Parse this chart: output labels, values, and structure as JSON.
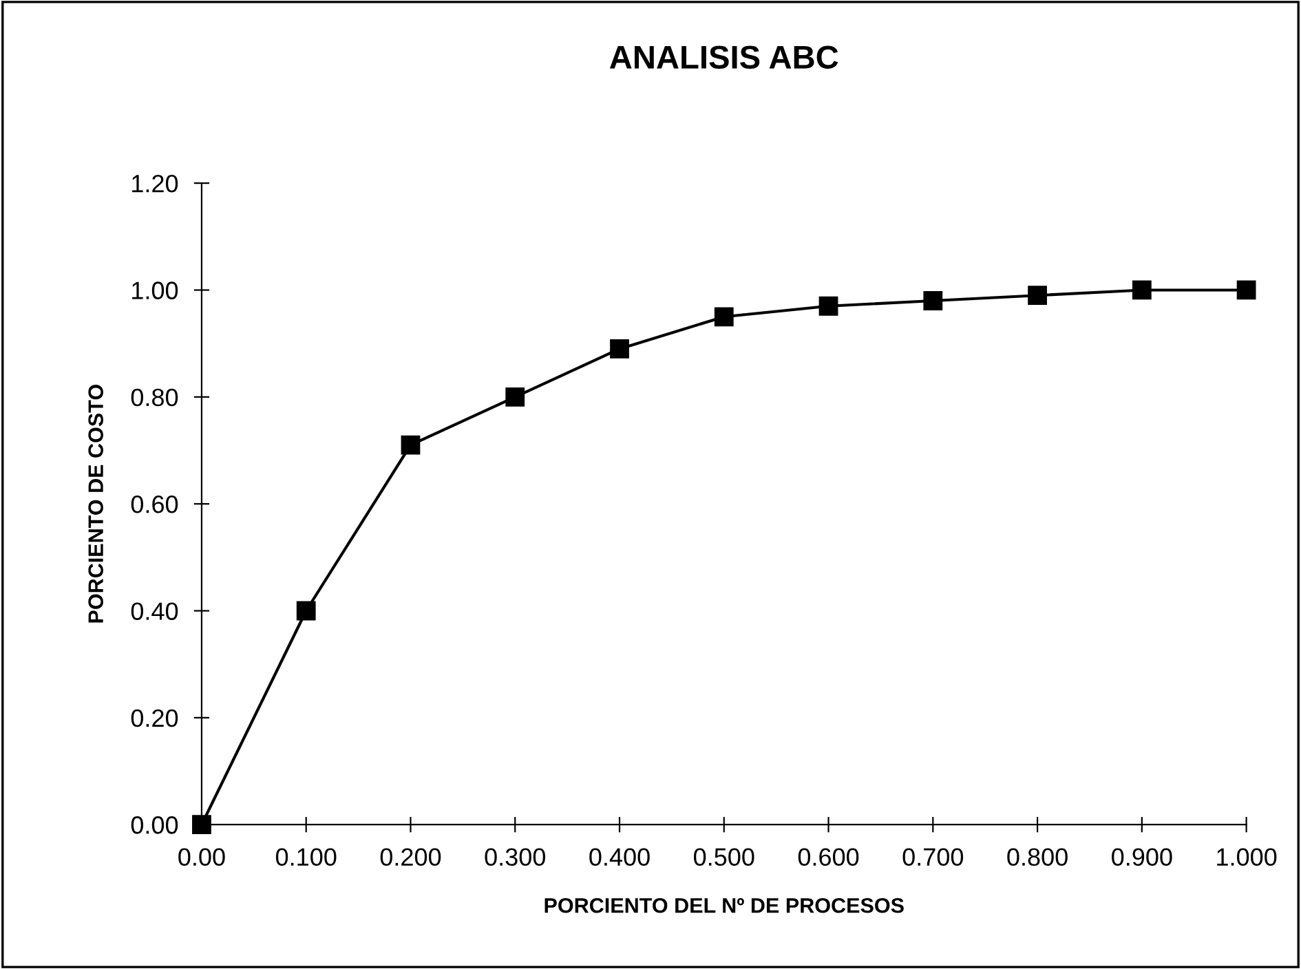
{
  "chart_data": {
    "type": "line",
    "title": "ANALISIS ABC",
    "xlabel": "PORCIENTO DEL Nº DE PROCESOS",
    "ylabel": "PORCIENTO DE COSTO",
    "x": [
      0.0,
      0.1,
      0.2,
      0.3,
      0.4,
      0.5,
      0.6,
      0.7,
      0.8,
      0.9,
      1.0
    ],
    "series": [
      {
        "color": "#000000",
        "values": [
          0.0,
          0.4,
          0.71,
          0.8,
          0.89,
          0.95,
          0.97,
          0.98,
          0.99,
          1.0,
          1.0
        ]
      }
    ],
    "xlim": [
      0.0,
      1.0
    ],
    "xticks": [
      {
        "value": 0.0,
        "label": "0.00"
      },
      {
        "value": 0.1,
        "label": "0.100"
      },
      {
        "value": 0.2,
        "label": "0.200"
      },
      {
        "value": 0.3,
        "label": "0.300"
      },
      {
        "value": 0.4,
        "label": "0.400"
      },
      {
        "value": 0.5,
        "label": "0.500"
      },
      {
        "value": 0.6,
        "label": "0.600"
      },
      {
        "value": 0.7,
        "label": "0.700"
      },
      {
        "value": 0.8,
        "label": "0.800"
      },
      {
        "value": 0.9,
        "label": "0.900"
      },
      {
        "value": 1.0,
        "label": "1.000"
      }
    ],
    "ylim": [
      0.0,
      1.2
    ],
    "yticks": [
      {
        "value": 0.0,
        "label": "0.00"
      },
      {
        "value": 0.2,
        "label": "0.20"
      },
      {
        "value": 0.4,
        "label": "0.40"
      },
      {
        "value": 0.6,
        "label": "0.60"
      },
      {
        "value": 0.8,
        "label": "0.80"
      },
      {
        "value": 1.0,
        "label": "1.00"
      },
      {
        "value": 1.2,
        "label": "1.20"
      }
    ],
    "marker": "square",
    "line_style": "solid",
    "grid": false,
    "legend": false
  }
}
